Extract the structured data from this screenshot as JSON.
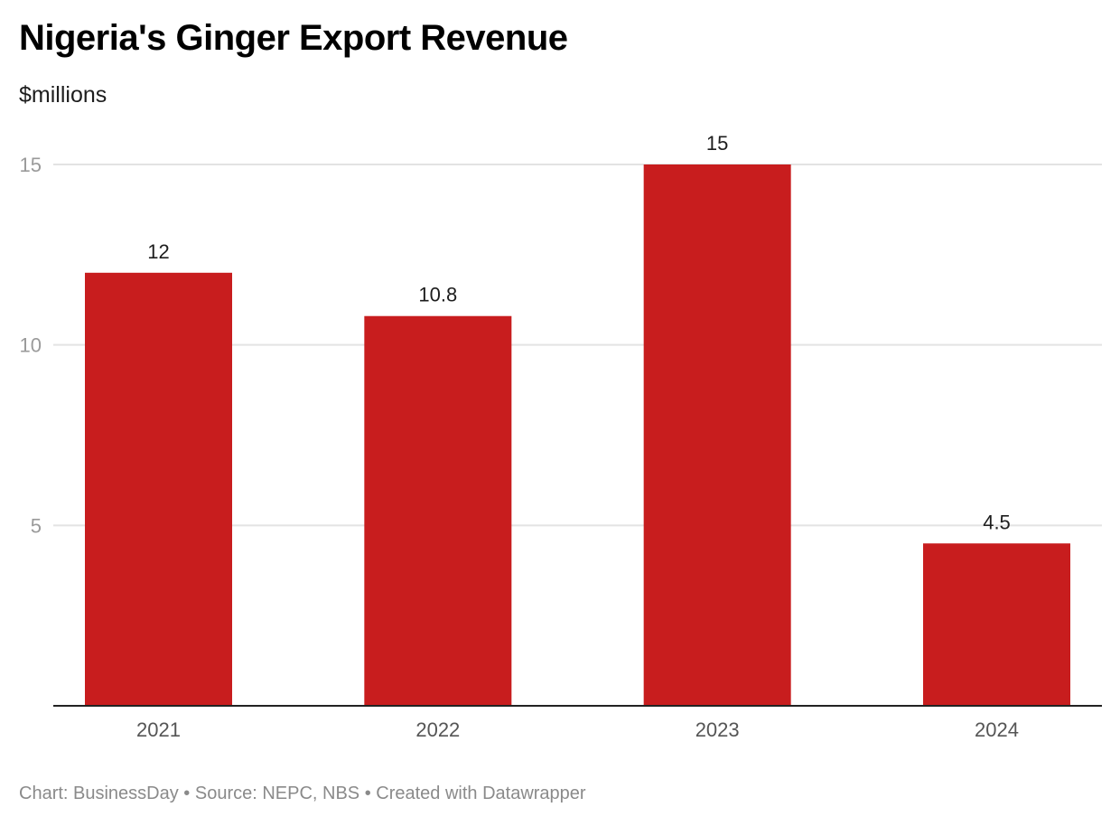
{
  "chart_data": {
    "type": "bar",
    "title": "Nigeria's Ginger Export Revenue",
    "subtitle": "$millions",
    "xlabel": "",
    "ylabel": "",
    "categories": [
      "2021",
      "2022",
      "2023",
      "2024"
    ],
    "values": [
      12,
      10.8,
      15,
      4.5
    ],
    "value_labels": [
      "12",
      "10.8",
      "15",
      "4.5"
    ],
    "yticks": [
      5,
      10,
      15
    ],
    "ylim": [
      0,
      15
    ],
    "grid": true,
    "legend": "none",
    "bar_color": "#c81d1e",
    "footer": "Chart: BusinessDay • Source: NEPC, NBS • Created with Datawrapper"
  }
}
